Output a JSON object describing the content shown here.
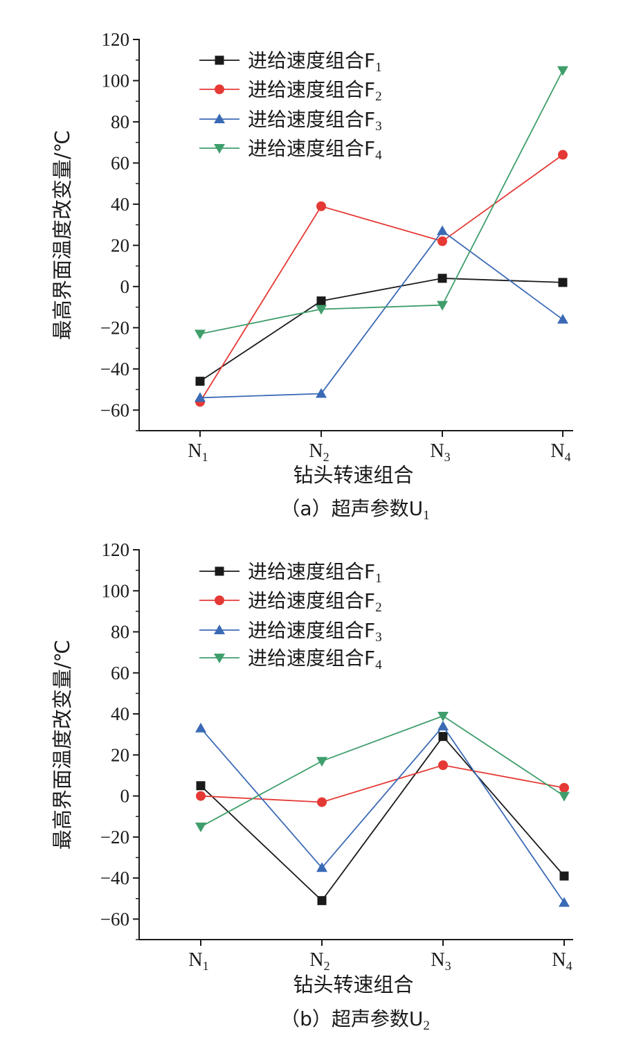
{
  "chart_data": [
    {
      "type": "line",
      "caption": "（a）超声参数U",
      "caption_sub": "1",
      "xlabel": "钻头转速组合",
      "ylabel": "最高界面温度改变量/℃",
      "categories": [
        {
          "base": "N",
          "sub": "1"
        },
        {
          "base": "N",
          "sub": "2"
        },
        {
          "base": "N",
          "sub": "3"
        },
        {
          "base": "N",
          "sub": "4"
        }
      ],
      "ylim": [
        -70,
        120
      ],
      "yticks": [
        -60,
        -40,
        -20,
        0,
        20,
        40,
        60,
        80,
        100,
        120
      ],
      "ytick_labels": [
        "−60",
        "−40",
        "−20",
        "0",
        "20",
        "40",
        "60",
        "80",
        "100",
        "120"
      ],
      "legend_position": "top-left",
      "series": [
        {
          "name": "进给速度组合F",
          "sub": "1",
          "color": "#1a1a1a",
          "marker": "square",
          "values": [
            -46,
            -7,
            4,
            2
          ]
        },
        {
          "name": "进给速度组合F",
          "sub": "2",
          "color": "#e53935",
          "marker": "circle",
          "values": [
            -56,
            39,
            22,
            64
          ]
        },
        {
          "name": "进给速度组合F",
          "sub": "3",
          "color": "#3b6ab5",
          "marker": "triangle-up",
          "values": [
            -54,
            -52,
            27,
            -16
          ]
        },
        {
          "name": "进给速度组合F",
          "sub": "4",
          "color": "#3f9e6b",
          "marker": "triangle-down",
          "values": [
            -23,
            -11,
            -9,
            105
          ]
        }
      ]
    },
    {
      "type": "line",
      "caption": "（b）超声参数U",
      "caption_sub": "2",
      "xlabel": "钻头转速组合",
      "ylabel": "最高界面温度改变量/℃",
      "categories": [
        {
          "base": "N",
          "sub": "1"
        },
        {
          "base": "N",
          "sub": "2"
        },
        {
          "base": "N",
          "sub": "3"
        },
        {
          "base": "N",
          "sub": "4"
        }
      ],
      "ylim": [
        -70,
        120
      ],
      "yticks": [
        -60,
        -40,
        -20,
        0,
        20,
        40,
        60,
        80,
        100,
        120
      ],
      "ytick_labels": [
        "−60",
        "−40",
        "−20",
        "0",
        "20",
        "40",
        "60",
        "80",
        "100",
        "120"
      ],
      "legend_position": "top-left",
      "series": [
        {
          "name": "进给速度组合F",
          "sub": "1",
          "color": "#1a1a1a",
          "marker": "square",
          "values": [
            5,
            -51,
            29,
            -39
          ]
        },
        {
          "name": "进给速度组合F",
          "sub": "2",
          "color": "#e53935",
          "marker": "circle",
          "values": [
            0,
            -3,
            15,
            4
          ]
        },
        {
          "name": "进给速度组合F",
          "sub": "3",
          "color": "#3b6ab5",
          "marker": "triangle-up",
          "values": [
            33,
            -35,
            34,
            -52
          ]
        },
        {
          "name": "进给速度组合F",
          "sub": "4",
          "color": "#3f9e6b",
          "marker": "triangle-down",
          "values": [
            -15,
            17,
            39,
            0
          ]
        }
      ]
    }
  ]
}
